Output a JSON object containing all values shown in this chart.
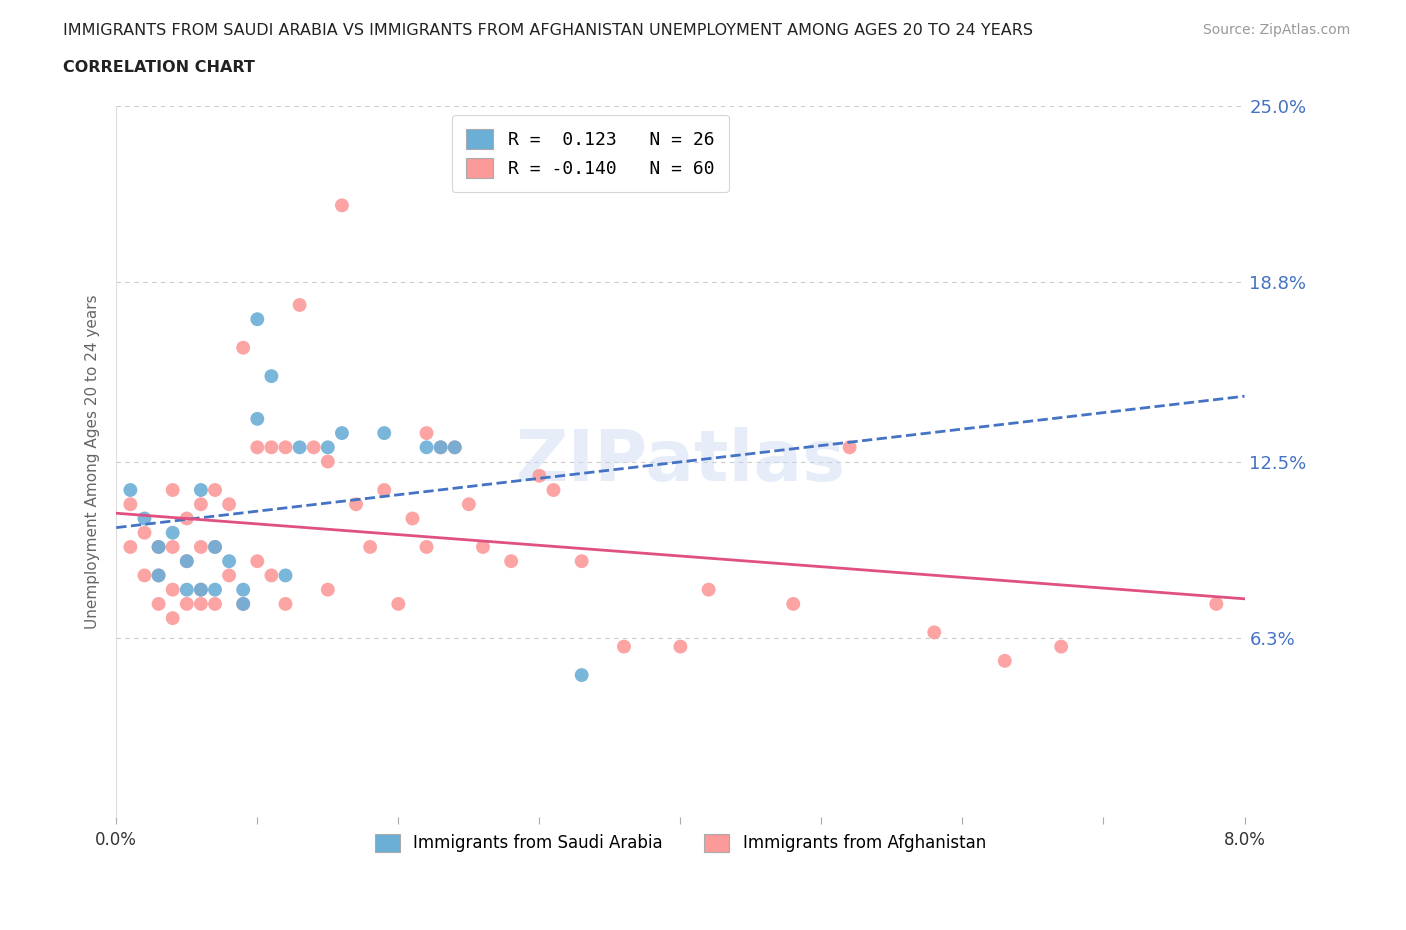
{
  "title_line1": "IMMIGRANTS FROM SAUDI ARABIA VS IMMIGRANTS FROM AFGHANISTAN UNEMPLOYMENT AMONG AGES 20 TO 24 YEARS",
  "title_line2": "CORRELATION CHART",
  "source_text": "Source: ZipAtlas.com",
  "ylabel": "Unemployment Among Ages 20 to 24 years",
  "xlim": [
    0.0,
    0.08
  ],
  "ylim": [
    0.0,
    0.25
  ],
  "ytick_values": [
    0.0,
    0.063,
    0.125,
    0.188,
    0.25
  ],
  "ytick_labels": [
    "",
    "6.3%",
    "12.5%",
    "18.8%",
    "25.0%"
  ],
  "watermark": "ZIPatlas",
  "saudi_color": "#6baed6",
  "afghan_color": "#fb9a99",
  "saudi_R": 0.123,
  "saudi_N": 26,
  "afghan_R": -0.14,
  "afghan_N": 60,
  "legend_label_saudi": "Immigrants from Saudi Arabia",
  "legend_label_afghan": "Immigrants from Afghanistan",
  "saudi_x": [
    0.001,
    0.002,
    0.003,
    0.003,
    0.004,
    0.005,
    0.005,
    0.006,
    0.006,
    0.007,
    0.007,
    0.008,
    0.009,
    0.009,
    0.01,
    0.01,
    0.011,
    0.012,
    0.013,
    0.015,
    0.016,
    0.019,
    0.022,
    0.023,
    0.024,
    0.033
  ],
  "saudi_y": [
    0.115,
    0.105,
    0.095,
    0.085,
    0.1,
    0.09,
    0.08,
    0.115,
    0.08,
    0.08,
    0.095,
    0.09,
    0.08,
    0.075,
    0.175,
    0.14,
    0.155,
    0.085,
    0.13,
    0.13,
    0.135,
    0.135,
    0.13,
    0.13,
    0.13,
    0.05
  ],
  "afghan_x": [
    0.001,
    0.001,
    0.002,
    0.002,
    0.003,
    0.003,
    0.003,
    0.004,
    0.004,
    0.004,
    0.004,
    0.005,
    0.005,
    0.005,
    0.006,
    0.006,
    0.006,
    0.006,
    0.007,
    0.007,
    0.007,
    0.008,
    0.008,
    0.009,
    0.009,
    0.01,
    0.01,
    0.011,
    0.011,
    0.012,
    0.012,
    0.013,
    0.014,
    0.015,
    0.015,
    0.016,
    0.017,
    0.018,
    0.019,
    0.02,
    0.021,
    0.022,
    0.022,
    0.023,
    0.024,
    0.025,
    0.026,
    0.028,
    0.03,
    0.031,
    0.033,
    0.036,
    0.04,
    0.042,
    0.048,
    0.052,
    0.058,
    0.063,
    0.067,
    0.078
  ],
  "afghan_y": [
    0.11,
    0.095,
    0.1,
    0.085,
    0.095,
    0.085,
    0.075,
    0.115,
    0.095,
    0.08,
    0.07,
    0.105,
    0.09,
    0.075,
    0.11,
    0.095,
    0.08,
    0.075,
    0.115,
    0.095,
    0.075,
    0.11,
    0.085,
    0.165,
    0.075,
    0.13,
    0.09,
    0.13,
    0.085,
    0.13,
    0.075,
    0.18,
    0.13,
    0.125,
    0.08,
    0.215,
    0.11,
    0.095,
    0.115,
    0.075,
    0.105,
    0.135,
    0.095,
    0.13,
    0.13,
    0.11,
    0.095,
    0.09,
    0.12,
    0.115,
    0.09,
    0.06,
    0.06,
    0.08,
    0.075,
    0.13,
    0.065,
    0.055,
    0.06,
    0.075
  ],
  "background_color": "#ffffff",
  "grid_color": "#cccccc",
  "title_color": "#333333",
  "axis_label_color": "#555555"
}
